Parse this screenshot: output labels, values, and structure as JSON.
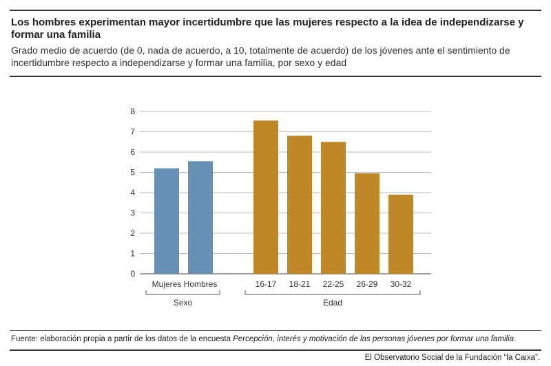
{
  "header": {
    "title": "Los hombres experimentan mayor incertidumbre que las mujeres respecto a la idea de independizarse y formar una familia",
    "subtitle": "Grado medio de acuerdo (de 0, nada de acuerdo, a 10, totalmente de acuerdo) de los jóvenes ante el sentimiento de incertidumbre respecto a independizarse y formar una familia, por sexo y edad"
  },
  "chart_data": {
    "type": "bar",
    "ylim": [
      0,
      8
    ],
    "yticks": [
      "0",
      "1",
      "2",
      "3",
      "4",
      "5",
      "6",
      "7",
      "8"
    ],
    "grid": true,
    "groups": [
      {
        "name": "Sexo",
        "color": "#6790b5",
        "categories": [
          "Mujeres",
          "Hombres"
        ],
        "values": [
          5.2,
          5.55
        ]
      },
      {
        "name": "Edad",
        "color": "#bf8726",
        "categories": [
          "16-17",
          "18-21",
          "22-25",
          "26-29",
          "30-32"
        ],
        "values": [
          7.55,
          6.8,
          6.5,
          4.95,
          3.9
        ]
      }
    ]
  },
  "footer": {
    "source_prefix": "Fuente: elaboración propia a partir de los datos de la encuesta ",
    "source_title": "Percepción, interés y motivación de las personas jóvenes por formar una familia",
    "source_suffix": ".",
    "credit": "El Observatorio Social de la Fundación “la Caixa”."
  }
}
